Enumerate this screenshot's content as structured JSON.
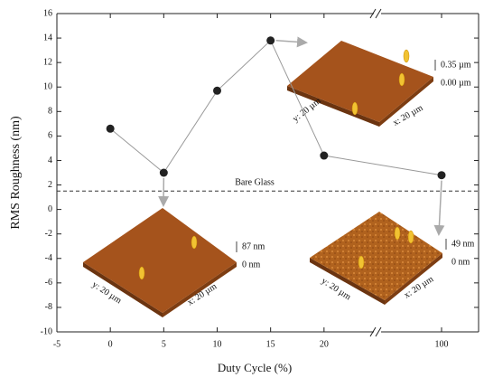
{
  "chart_data": {
    "type": "line",
    "x_label": "Duty Cycle (%)",
    "y_label": "RMS Roughness (nm)",
    "x": [
      0,
      5,
      10,
      15,
      20,
      100
    ],
    "series": [
      {
        "values": [
          6.6,
          3.0,
          9.7,
          13.8,
          4.4,
          2.8
        ],
        "color": "#222222",
        "line_color": "#999999"
      }
    ],
    "xlim": [
      -5,
      103
    ],
    "xbreak": [
      25,
      94
    ],
    "xticks": [
      -5,
      0,
      5,
      10,
      15,
      20,
      100
    ],
    "ylim": [
      -10,
      16
    ],
    "yticks": [
      -10,
      -8,
      -6,
      -4,
      -2,
      0,
      2,
      4,
      6,
      8,
      10,
      12,
      14,
      16
    ],
    "reference_line": {
      "value": 1.5,
      "label": "Bare Glass"
    },
    "insets": [
      {
        "scale_max": "0.35 µm",
        "scale_min": "0.00 µm",
        "y_label": "y: 20 µm",
        "x_label": "x: 20 µm"
      },
      {
        "scale_max": "87 nm",
        "scale_min": "0 nm",
        "y_label": "y: 20 µm",
        "x_label": "x: 20 µm"
      },
      {
        "scale_max": "49 nm",
        "scale_min": "0 nm",
        "y_label": "y: 20 µm",
        "x_label": "x: 20 µm"
      }
    ]
  }
}
